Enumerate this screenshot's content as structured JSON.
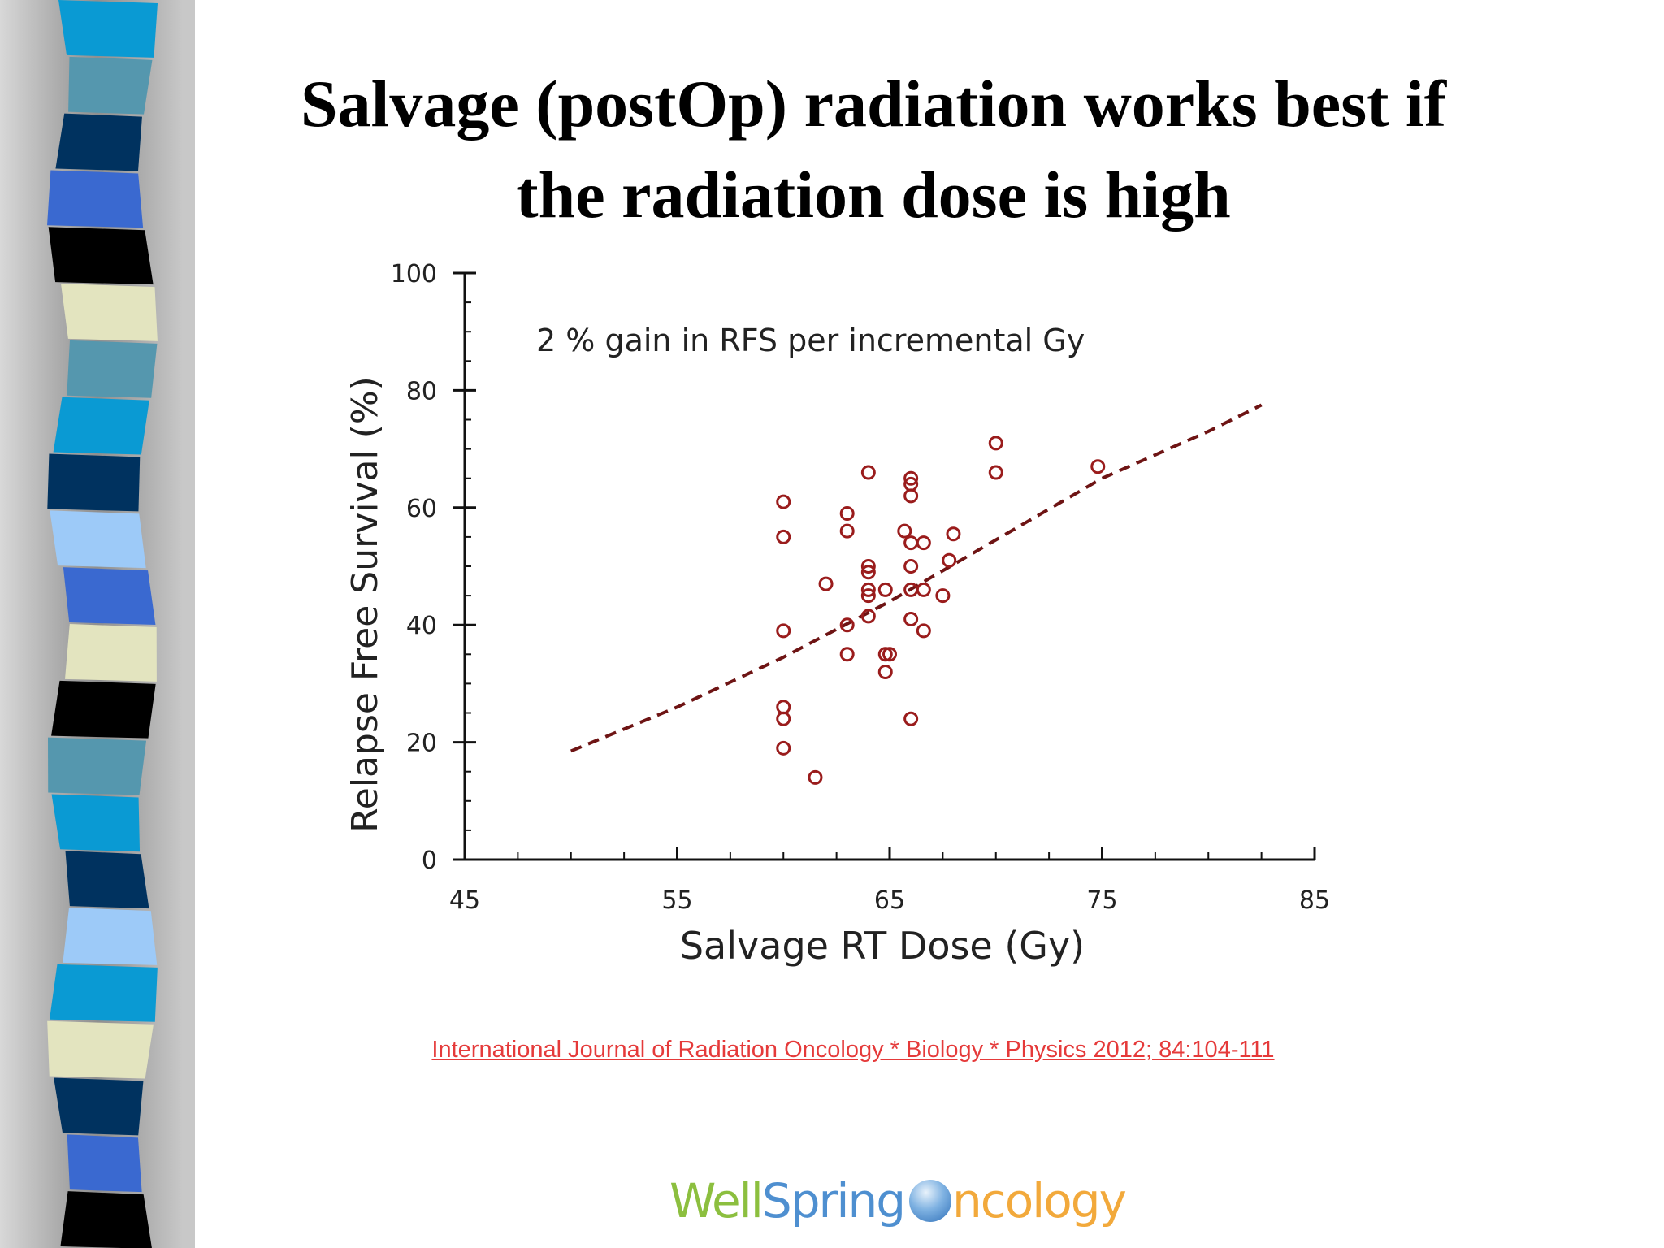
{
  "slide": {
    "title_lines": [
      "Salvage (postOp) radiation works best if",
      "the radiation dose is high"
    ],
    "citation": "International Journal of Radiation Oncology * Biology * Physics 2012; 84:104-111",
    "logo": {
      "well": "Well",
      "spring": "Spring",
      "globe": "globe-icon",
      "rest": "ncology"
    },
    "sidebar_colors": [
      "#0a9ad3",
      "#5597ae",
      "#00325f",
      "#3a69d0",
      "#000000",
      "#e3e4bf",
      "#5597ae",
      "#0a9ad3",
      "#00325f",
      "#9dcaf8",
      "#3a69d0",
      "#e3e4bf",
      "#000000",
      "#5597ae",
      "#0a9ad3",
      "#00325f",
      "#9dcaf8",
      "#0a9ad3",
      "#e3e4bf",
      "#00325f",
      "#3a69d0",
      "#000000"
    ]
  },
  "chart_data": {
    "type": "scatter",
    "xlabel": "Salvage RT Dose (Gy)",
    "ylabel": "Relapse Free Survival (%)",
    "annotation": "2 % gain in RFS per incremental Gy",
    "xlim": [
      45,
      85
    ],
    "ylim": [
      0,
      100
    ],
    "x_ticks": [
      45,
      55,
      65,
      75,
      85
    ],
    "y_ticks": [
      0,
      20,
      40,
      60,
      80,
      100
    ],
    "grid": false,
    "marker_color": "#9a1c1c",
    "trend_color": "#6e1414",
    "points": [
      [
        60,
        61
      ],
      [
        60,
        55
      ],
      [
        60,
        39
      ],
      [
        60,
        26
      ],
      [
        60,
        24
      ],
      [
        60,
        19
      ],
      [
        61.5,
        14
      ],
      [
        62,
        47
      ],
      [
        63,
        59
      ],
      [
        63,
        56
      ],
      [
        63,
        40
      ],
      [
        63,
        35
      ],
      [
        64,
        66
      ],
      [
        64,
        50
      ],
      [
        64,
        49
      ],
      [
        64,
        46
      ],
      [
        64,
        45
      ],
      [
        64,
        41.5
      ],
      [
        64.8,
        46
      ],
      [
        64.8,
        35
      ],
      [
        65,
        35
      ],
      [
        64.8,
        32
      ],
      [
        65.7,
        56
      ],
      [
        66,
        65
      ],
      [
        66,
        64
      ],
      [
        66,
        62
      ],
      [
        66,
        54
      ],
      [
        66,
        50
      ],
      [
        66,
        46
      ],
      [
        66,
        41
      ],
      [
        66,
        24
      ],
      [
        66.6,
        54
      ],
      [
        66.6,
        46
      ],
      [
        66.6,
        39
      ],
      [
        67.5,
        45
      ],
      [
        67.8,
        51
      ],
      [
        68,
        55.5
      ],
      [
        70,
        71
      ],
      [
        70,
        66
      ],
      [
        74.8,
        67
      ]
    ],
    "trend": [
      [
        50,
        18.5
      ],
      [
        55,
        26
      ],
      [
        60,
        34.5
      ],
      [
        65,
        44
      ],
      [
        70,
        54.5
      ],
      [
        75,
        65
      ],
      [
        80,
        73
      ],
      [
        82.5,
        77.5
      ]
    ]
  }
}
